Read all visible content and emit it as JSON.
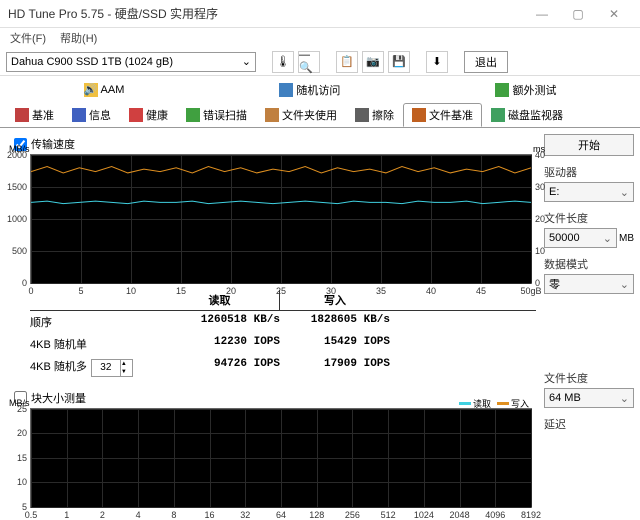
{
  "window": {
    "title": "HD Tune Pro 5.75 - 硬盘/SSD 实用程序"
  },
  "menu": {
    "file": "文件(F)",
    "help": "帮助(H)"
  },
  "toolbar": {
    "drive": "Dahua C900 SSD 1TB (1024 gB)",
    "exit": "退出"
  },
  "tabs_row1": {
    "aam": "AAM",
    "random": "随机访问",
    "extra": "额外测试"
  },
  "tabs_row2": {
    "benchmark": "基准",
    "info": "信息",
    "health": "健康",
    "errorscan": "错误扫描",
    "folder": "文件夹使用",
    "erase": "擦除",
    "filebench": "文件基准",
    "diskmon": "磁盘监视器"
  },
  "chk_transfer": "传输速度",
  "chart1": {
    "y_left": [
      2000,
      1500,
      1000,
      500,
      0
    ],
    "y_right": [
      40,
      30,
      20,
      10,
      0
    ],
    "x": [
      0,
      5,
      10,
      15,
      20,
      25,
      30,
      35,
      40,
      45,
      "50gB"
    ],
    "unit_l": "MB/s",
    "unit_r": "ms",
    "colors": {
      "orange": "#e09020",
      "cyan": "#40d0e0",
      "bg": "#000000"
    },
    "series_orange_y": [
      0.13,
      0.09,
      0.14,
      0.1,
      0.13,
      0.09,
      0.14,
      0.11,
      0.13,
      0.1,
      0.14,
      0.09,
      0.13,
      0.1,
      0.14,
      0.11,
      0.13,
      0.09,
      0.14,
      0.1,
      0.13,
      0.11,
      0.14,
      0.09,
      0.13,
      0.1,
      0.14,
      0.11,
      0.13,
      0.09,
      0.14,
      0.1
    ],
    "series_cyan_y": [
      0.37,
      0.36,
      0.38,
      0.37,
      0.36,
      0.37,
      0.38,
      0.36,
      0.37,
      0.37,
      0.36,
      0.38,
      0.37,
      0.36,
      0.37,
      0.38,
      0.37,
      0.36,
      0.37,
      0.38,
      0.36,
      0.37,
      0.37,
      0.38,
      0.36,
      0.37,
      0.37,
      0.36,
      0.38,
      0.37,
      0.36,
      0.37
    ]
  },
  "table": {
    "hdr_read": "读取",
    "hdr_write": "写入",
    "rows": [
      {
        "name": "顺序",
        "read": "1260518 KB/s",
        "write": "1828605 KB/s"
      },
      {
        "name": "4KB 随机单",
        "read": "12230 IOPS",
        "write": "15429 IOPS"
      },
      {
        "name": "4KB 随机多",
        "read": "94726 IOPS",
        "write": "17909 IOPS"
      }
    ],
    "spin": "32"
  },
  "chk_block": "块大小测量",
  "chart2": {
    "y_left": [
      25,
      20,
      15,
      10,
      5
    ],
    "x": [
      "0.5",
      "1",
      "2",
      "4",
      "8",
      "16",
      "32",
      "64",
      "128",
      "256",
      "512",
      "1024",
      "2048",
      "4096",
      "8192"
    ],
    "unit_l": "MB/s",
    "legend_read": "读取",
    "legend_write": "写入",
    "colors": {
      "read": "#40d0e0",
      "write": "#e09020"
    }
  },
  "right": {
    "start": "开始",
    "drive_lbl": "驱动器",
    "drive_val": "E:",
    "filelen_lbl": "文件长度",
    "filelen_val": "50000",
    "filelen_unit": "MB",
    "datamode_lbl": "数据模式",
    "datamode_val": "零",
    "filelen2_lbl": "文件长度",
    "filelen2_val": "64 MB",
    "delay_lbl": "延迟"
  },
  "icons": {
    "aam": "#f0c040",
    "random": "#4080c0",
    "extra": "#40a040",
    "benchmark": "#c04040",
    "info": "#4060c0",
    "health": "#d04040",
    "errorscan": "#40a040",
    "folder": "#c08040",
    "erase": "#606060",
    "filebench": "#c06020",
    "diskmon": "#40a060"
  }
}
